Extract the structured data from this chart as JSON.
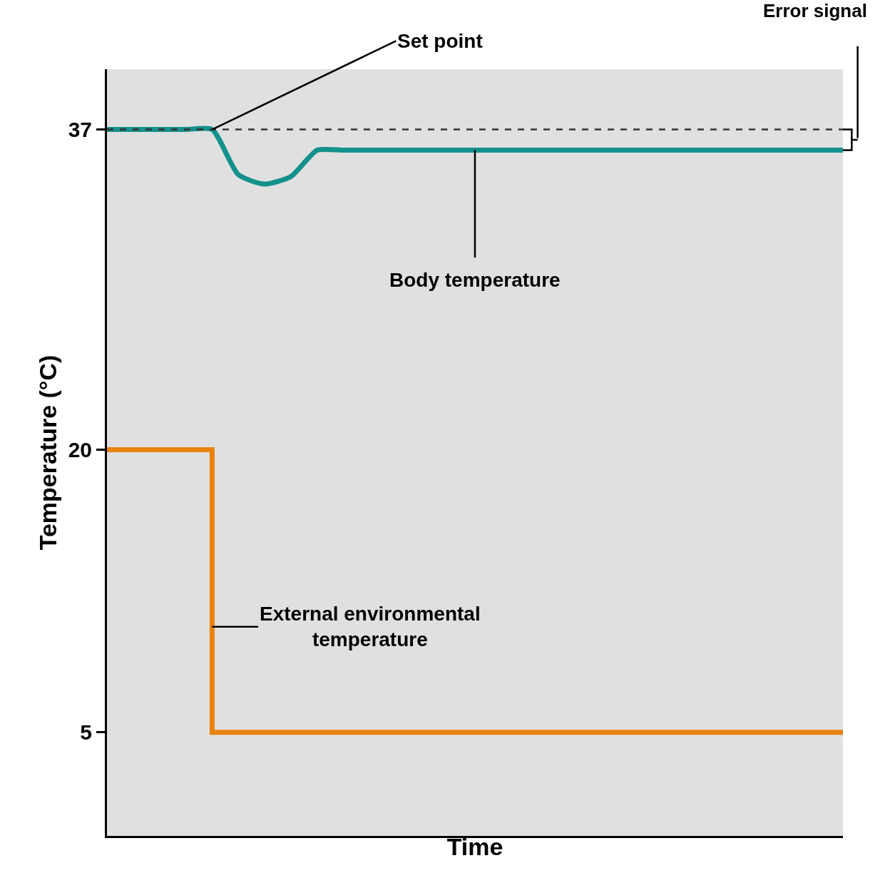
{
  "chart_data": {
    "type": "line",
    "xlabel": "Time",
    "ylabel": "Temperature (°C)",
    "categories": [
      null,
      null,
      null,
      null,
      null,
      null,
      null,
      null,
      null,
      null,
      null,
      null,
      null,
      null,
      null,
      null,
      null,
      null,
      null,
      null,
      null,
      null,
      null,
      null,
      null,
      null,
      null,
      null,
      null
    ],
    "series": [
      {
        "color": "#14918c",
        "values": [
          37,
          37,
          37,
          37,
          37,
          34.6,
          34.1,
          34.5,
          35.9,
          35.9,
          35.9,
          35.9,
          35.9,
          35.9,
          35.9,
          35.9,
          35.9,
          35.9,
          35.9,
          35.9,
          35.9,
          35.9,
          35.9,
          35.9,
          35.9,
          35.9,
          35.9,
          35.9,
          35.9
        ]
      },
      {
        "type": "step",
        "color": "#e8820c",
        "values": [
          20,
          20,
          20,
          20,
          5,
          5,
          5,
          5,
          5,
          5,
          5,
          5,
          5,
          5,
          5,
          5,
          5,
          5,
          5,
          5,
          5,
          5,
          5,
          5,
          5,
          5,
          5,
          5,
          5
        ]
      }
    ],
    "ylim": [
      -0.5,
      40.2
    ],
    "yticks": [
      5,
      20,
      37
    ],
    "tick_labels": "y",
    "grid": false,
    "ref_lines": [
      {
        "axis": "y",
        "value": 37,
        "label": "Set point",
        "line_style": "dashed",
        "color": "#333333"
      }
    ],
    "annotations": [
      "Body temperature",
      "External environmental\ntemperature",
      "Error signal"
    ]
  }
}
